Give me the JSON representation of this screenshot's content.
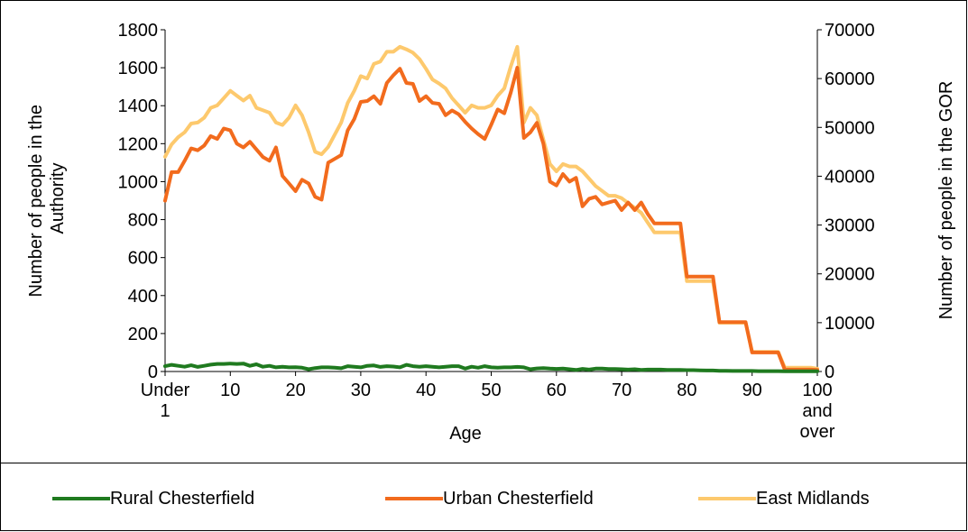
{
  "chart_data": {
    "type": "line",
    "xlabel": "Age",
    "ylabel_left": "Number of people in the Authority",
    "ylabel_right": "Number of people in the GOR",
    "ylim_left": [
      0,
      1800
    ],
    "ylim_right": [
      0,
      70000
    ],
    "yticks_left": [
      "0",
      "200",
      "400",
      "600",
      "800",
      "1000",
      "1200",
      "1400",
      "1600",
      "1800"
    ],
    "yticks_right": [
      "0",
      "10000",
      "20000",
      "30000",
      "40000",
      "50000",
      "60000",
      "70000"
    ],
    "xticks": [
      {
        "x": 0,
        "lines": [
          "Under",
          "1"
        ]
      },
      {
        "x": 10,
        "lines": [
          "10"
        ]
      },
      {
        "x": 20,
        "lines": [
          "20"
        ]
      },
      {
        "x": 30,
        "lines": [
          "30"
        ]
      },
      {
        "x": 40,
        "lines": [
          "40"
        ]
      },
      {
        "x": 50,
        "lines": [
          "50"
        ]
      },
      {
        "x": 60,
        "lines": [
          "60"
        ]
      },
      {
        "x": 70,
        "lines": [
          "70"
        ]
      },
      {
        "x": 80,
        "lines": [
          "80"
        ]
      },
      {
        "x": 90,
        "lines": [
          "90"
        ]
      },
      {
        "x": 100,
        "lines": [
          "100",
          "and",
          "over"
        ]
      }
    ],
    "legend_position": "bottom",
    "series": [
      {
        "name": "Rural Chesterfield",
        "axis": "left",
        "color": "#1f7a1f",
        "x": [
          0,
          1,
          2,
          3,
          4,
          5,
          6,
          7,
          8,
          9,
          10,
          11,
          12,
          13,
          14,
          15,
          16,
          17,
          18,
          19,
          20,
          21,
          22,
          23,
          24,
          25,
          26,
          27,
          28,
          29,
          30,
          31,
          32,
          33,
          34,
          35,
          36,
          37,
          38,
          39,
          40,
          41,
          42,
          43,
          44,
          45,
          46,
          47,
          48,
          49,
          50,
          51,
          52,
          53,
          54,
          55,
          56,
          57,
          58,
          59,
          60,
          61,
          62,
          63,
          64,
          65,
          66,
          67,
          68,
          69,
          70,
          71,
          72,
          73,
          74,
          75,
          76,
          77,
          78,
          79,
          80,
          81,
          82,
          83,
          84,
          85,
          86,
          87,
          88,
          89,
          90,
          91,
          92,
          93,
          94,
          95,
          96,
          97,
          98,
          99,
          100
        ],
        "y": [
          28,
          35,
          30,
          25,
          33,
          24,
          30,
          36,
          40,
          40,
          42,
          40,
          42,
          30,
          38,
          25,
          30,
          22,
          25,
          22,
          23,
          20,
          12,
          18,
          22,
          22,
          20,
          17,
          28,
          25,
          22,
          30,
          32,
          24,
          28,
          26,
          22,
          35,
          28,
          25,
          28,
          25,
          22,
          25,
          28,
          28,
          15,
          25,
          20,
          28,
          22,
          20,
          22,
          22,
          24,
          22,
          12,
          16,
          18,
          15,
          14,
          15,
          12,
          8,
          14,
          10,
          15,
          15,
          13,
          13,
          12,
          10,
          12,
          8,
          10,
          10,
          10,
          8,
          8,
          8,
          7,
          7,
          6,
          5,
          5,
          4,
          4,
          3,
          3,
          3,
          3,
          2,
          2,
          2,
          2,
          1,
          1,
          1,
          1,
          1,
          1
        ]
      },
      {
        "name": "Urban Chesterfield",
        "axis": "left",
        "color": "#f26b1d",
        "x": [
          0,
          1,
          2,
          3,
          4,
          5,
          6,
          7,
          8,
          9,
          10,
          11,
          12,
          13,
          14,
          15,
          16,
          17,
          18,
          19,
          20,
          21,
          22,
          23,
          24,
          25,
          26,
          27,
          28,
          29,
          30,
          31,
          32,
          33,
          34,
          35,
          36,
          37,
          38,
          39,
          40,
          41,
          42,
          43,
          44,
          45,
          46,
          47,
          48,
          49,
          50,
          51,
          52,
          53,
          54,
          55,
          56,
          57,
          58,
          59,
          60,
          61,
          62,
          63,
          64,
          65,
          66,
          67,
          68,
          69,
          70,
          71,
          72,
          73,
          74,
          75,
          76,
          77,
          78,
          79,
          80,
          81,
          82,
          83,
          84,
          85,
          86,
          87,
          88,
          89,
          90,
          91,
          92,
          93,
          94,
          95,
          96,
          97,
          98,
          99,
          100
        ],
        "y": [
          900,
          1050,
          1050,
          1110,
          1175,
          1165,
          1190,
          1240,
          1225,
          1280,
          1270,
          1200,
          1180,
          1210,
          1170,
          1130,
          1110,
          1180,
          1030,
          990,
          950,
          1010,
          990,
          920,
          905,
          1100,
          1120,
          1140,
          1270,
          1330,
          1420,
          1425,
          1450,
          1410,
          1520,
          1560,
          1595,
          1520,
          1515,
          1425,
          1450,
          1415,
          1410,
          1350,
          1375,
          1355,
          1315,
          1280,
          1250,
          1225,
          1300,
          1380,
          1360,
          1470,
          1600,
          1230,
          1260,
          1310,
          1200,
          1000,
          980,
          1040,
          1000,
          1020,
          870,
          910,
          920,
          880,
          890,
          900,
          850,
          890,
          850,
          890,
          830,
          780,
          780,
          780,
          780,
          780,
          500,
          500,
          500,
          500,
          500,
          260,
          260,
          260,
          260,
          260,
          100,
          100,
          100,
          100,
          100,
          10,
          10,
          10,
          10,
          10,
          8
        ]
      },
      {
        "name": "East Midlands",
        "axis": "right",
        "color": "#fdc96d",
        "x": [
          0,
          1,
          2,
          3,
          4,
          5,
          6,
          7,
          8,
          9,
          10,
          11,
          12,
          13,
          14,
          15,
          16,
          17,
          18,
          19,
          20,
          21,
          22,
          23,
          24,
          25,
          26,
          27,
          28,
          29,
          30,
          31,
          32,
          33,
          34,
          35,
          36,
          37,
          38,
          39,
          40,
          41,
          42,
          43,
          44,
          45,
          46,
          47,
          48,
          49,
          50,
          51,
          52,
          53,
          54,
          55,
          56,
          57,
          58,
          59,
          60,
          61,
          62,
          63,
          64,
          65,
          66,
          67,
          68,
          69,
          70,
          71,
          72,
          73,
          74,
          75,
          76,
          77,
          78,
          79,
          80,
          81,
          82,
          83,
          84,
          85,
          86,
          87,
          88,
          89,
          90,
          91,
          92,
          93,
          94,
          95,
          96,
          97,
          98,
          99,
          100
        ],
        "y": [
          44000,
          46500,
          48000,
          49000,
          50800,
          51000,
          52000,
          54000,
          54500,
          56000,
          57500,
          56500,
          55500,
          56500,
          54000,
          53500,
          53000,
          51000,
          50500,
          52000,
          54500,
          52500,
          49000,
          45000,
          44500,
          46000,
          48500,
          51000,
          55000,
          57500,
          60500,
          60000,
          63000,
          63500,
          65500,
          65500,
          66500,
          66000,
          65300,
          64000,
          62000,
          59800,
          59000,
          58000,
          56000,
          54500,
          53000,
          54500,
          54000,
          54000,
          54500,
          56500,
          58000,
          62500,
          66500,
          51000,
          54000,
          52500,
          47500,
          42500,
          41000,
          42500,
          42000,
          42000,
          41000,
          39500,
          38000,
          37000,
          36000,
          36000,
          35500,
          34500,
          33500,
          32500,
          30500,
          28500,
          28500,
          28500,
          28500,
          28500,
          18500,
          18500,
          18500,
          18500,
          18500,
          10000,
          10000,
          10000,
          10000,
          10000,
          4000,
          4000,
          4000,
          4000,
          4000,
          800,
          800,
          800,
          800,
          800,
          600
        ]
      }
    ]
  }
}
